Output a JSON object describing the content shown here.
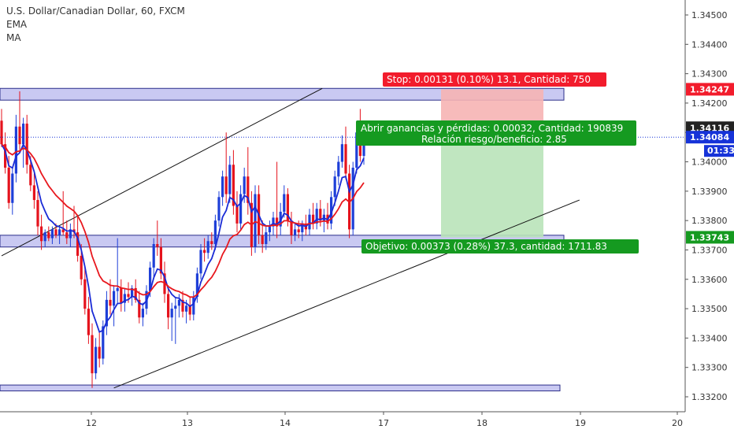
{
  "header": {
    "symbol": "U.S. Dollar/Canadian Dollar, 60, FXCM",
    "indicator_ema": "EMA",
    "indicator_ma": "MA"
  },
  "colors": {
    "up": "#1e3fd8",
    "down": "#e5131d",
    "ema": "#1a2bd6",
    "ma": "#e8171d",
    "zone_fill": "#c9c9f2",
    "zone_stroke": "#2c2f8a",
    "stop_fill": "#f6b4b4",
    "target_fill": "#b9e3b9",
    "red_tag": "#f21c2c",
    "green_tag": "#159a20",
    "blue_tag": "#1633d8",
    "dark_tag": "#222222"
  },
  "chart_data": {
    "type": "candlestick",
    "instrument": "U.S. Dollar/Canadian Dollar",
    "timeframe": "60",
    "source": "FXCM",
    "ylim": [
      1.3318,
      1.3458
    ],
    "y_ticks": [
      1.332,
      1.333,
      1.334,
      1.335,
      1.336,
      1.337,
      1.338,
      1.339,
      1.34,
      1.341,
      1.342,
      1.343,
      1.344,
      1.345
    ],
    "y_tick_labels": [
      "1.33200",
      "1.33300",
      "1.33400",
      "1.33500",
      "1.33600",
      "1.33700",
      "1.33800",
      "1.33900",
      "1.34000",
      "1.34100",
      "1.34200",
      "1.34300",
      "1.34400",
      "1.34500"
    ],
    "x_ticks": [
      "12",
      "13",
      "14",
      "17",
      "18",
      "19",
      "20"
    ],
    "horizontal_zones": [
      {
        "from": 1.3421,
        "to": 1.3425
      },
      {
        "from": 1.3371,
        "to": 1.3375
      },
      {
        "from": 1.3322,
        "to": 1.3324
      }
    ],
    "trend_lines": [
      {
        "from": [
          0,
          1.3368
        ],
        "to": [
          82,
          1.3425
        ]
      },
      {
        "from": [
          31,
          1.3323
        ],
        "to": [
          153,
          1.3387
        ]
      }
    ],
    "candles": [
      {
        "o": 1.3414,
        "h": 1.3418,
        "l": 1.3405,
        "c": 1.3406
      },
      {
        "o": 1.3406,
        "h": 1.341,
        "l": 1.3396,
        "c": 1.3398
      },
      {
        "o": 1.3398,
        "h": 1.3402,
        "l": 1.3384,
        "c": 1.3386
      },
      {
        "o": 1.3386,
        "h": 1.3398,
        "l": 1.3382,
        "c": 1.3396
      },
      {
        "o": 1.3396,
        "h": 1.3416,
        "l": 1.3393,
        "c": 1.3412
      },
      {
        "o": 1.3412,
        "h": 1.3424,
        "l": 1.3404,
        "c": 1.3406
      },
      {
        "o": 1.3406,
        "h": 1.3415,
        "l": 1.3398,
        "c": 1.3413
      },
      {
        "o": 1.3413,
        "h": 1.3416,
        "l": 1.3396,
        "c": 1.3399
      },
      {
        "o": 1.3399,
        "h": 1.3402,
        "l": 1.339,
        "c": 1.3392
      },
      {
        "o": 1.3392,
        "h": 1.3396,
        "l": 1.3384,
        "c": 1.3387
      },
      {
        "o": 1.3387,
        "h": 1.339,
        "l": 1.3375,
        "c": 1.3378
      },
      {
        "o": 1.3378,
        "h": 1.3382,
        "l": 1.337,
        "c": 1.3373
      },
      {
        "o": 1.3373,
        "h": 1.3377,
        "l": 1.3371,
        "c": 1.3376
      },
      {
        "o": 1.3376,
        "h": 1.3378,
        "l": 1.3373,
        "c": 1.3374
      },
      {
        "o": 1.3374,
        "h": 1.3378,
        "l": 1.3372,
        "c": 1.3377
      },
      {
        "o": 1.3377,
        "h": 1.3379,
        "l": 1.3374,
        "c": 1.3375
      },
      {
        "o": 1.3375,
        "h": 1.3378,
        "l": 1.3372,
        "c": 1.3377
      },
      {
        "o": 1.3377,
        "h": 1.339,
        "l": 1.3375,
        "c": 1.3376
      },
      {
        "o": 1.3376,
        "h": 1.338,
        "l": 1.3372,
        "c": 1.3374
      },
      {
        "o": 1.3374,
        "h": 1.3379,
        "l": 1.3371,
        "c": 1.3377
      },
      {
        "o": 1.3377,
        "h": 1.3385,
        "l": 1.3374,
        "c": 1.3376
      },
      {
        "o": 1.3376,
        "h": 1.3382,
        "l": 1.3366,
        "c": 1.3368
      },
      {
        "o": 1.3368,
        "h": 1.3372,
        "l": 1.3358,
        "c": 1.336
      },
      {
        "o": 1.336,
        "h": 1.3364,
        "l": 1.3348,
        "c": 1.335
      },
      {
        "o": 1.335,
        "h": 1.3354,
        "l": 1.3338,
        "c": 1.3341
      },
      {
        "o": 1.3341,
        "h": 1.3345,
        "l": 1.3323,
        "c": 1.3328
      },
      {
        "o": 1.3328,
        "h": 1.334,
        "l": 1.3326,
        "c": 1.3337
      },
      {
        "o": 1.3337,
        "h": 1.3342,
        "l": 1.333,
        "c": 1.3333
      },
      {
        "o": 1.3333,
        "h": 1.3346,
        "l": 1.3331,
        "c": 1.3344
      },
      {
        "o": 1.3344,
        "h": 1.3356,
        "l": 1.3341,
        "c": 1.3353
      },
      {
        "o": 1.3353,
        "h": 1.336,
        "l": 1.3348,
        "c": 1.3351
      },
      {
        "o": 1.3351,
        "h": 1.3358,
        "l": 1.3344,
        "c": 1.3356
      },
      {
        "o": 1.3356,
        "h": 1.3374,
        "l": 1.3352,
        "c": 1.3357
      },
      {
        "o": 1.3357,
        "h": 1.336,
        "l": 1.3349,
        "c": 1.3352
      },
      {
        "o": 1.3352,
        "h": 1.3357,
        "l": 1.3349,
        "c": 1.3355
      },
      {
        "o": 1.3355,
        "h": 1.3359,
        "l": 1.3352,
        "c": 1.3354
      },
      {
        "o": 1.3354,
        "h": 1.3358,
        "l": 1.3351,
        "c": 1.3357
      },
      {
        "o": 1.3357,
        "h": 1.336,
        "l": 1.3352,
        "c": 1.3353
      },
      {
        "o": 1.3353,
        "h": 1.3356,
        "l": 1.3345,
        "c": 1.3347
      },
      {
        "o": 1.3347,
        "h": 1.3352,
        "l": 1.3344,
        "c": 1.335
      },
      {
        "o": 1.335,
        "h": 1.3358,
        "l": 1.3348,
        "c": 1.3356
      },
      {
        "o": 1.3356,
        "h": 1.3366,
        "l": 1.3354,
        "c": 1.3364
      },
      {
        "o": 1.3364,
        "h": 1.3374,
        "l": 1.336,
        "c": 1.3372
      },
      {
        "o": 1.3372,
        "h": 1.338,
        "l": 1.3368,
        "c": 1.3371
      },
      {
        "o": 1.3371,
        "h": 1.3374,
        "l": 1.336,
        "c": 1.3362
      },
      {
        "o": 1.3362,
        "h": 1.3366,
        "l": 1.3352,
        "c": 1.3355
      },
      {
        "o": 1.3355,
        "h": 1.3358,
        "l": 1.3343,
        "c": 1.3347
      },
      {
        "o": 1.3347,
        "h": 1.3352,
        "l": 1.3339,
        "c": 1.335
      },
      {
        "o": 1.335,
        "h": 1.3354,
        "l": 1.3338,
        "c": 1.3351
      },
      {
        "o": 1.3351,
        "h": 1.3355,
        "l": 1.3347,
        "c": 1.3353
      },
      {
        "o": 1.3353,
        "h": 1.3356,
        "l": 1.3347,
        "c": 1.3349
      },
      {
        "o": 1.3349,
        "h": 1.3353,
        "l": 1.3345,
        "c": 1.3351
      },
      {
        "o": 1.3351,
        "h": 1.3354,
        "l": 1.3346,
        "c": 1.3348
      },
      {
        "o": 1.3348,
        "h": 1.3356,
        "l": 1.3346,
        "c": 1.3354
      },
      {
        "o": 1.3354,
        "h": 1.3364,
        "l": 1.3352,
        "c": 1.3362
      },
      {
        "o": 1.3362,
        "h": 1.3372,
        "l": 1.336,
        "c": 1.337
      },
      {
        "o": 1.337,
        "h": 1.3374,
        "l": 1.3366,
        "c": 1.3369
      },
      {
        "o": 1.3369,
        "h": 1.3375,
        "l": 1.3367,
        "c": 1.3373
      },
      {
        "o": 1.3373,
        "h": 1.3376,
        "l": 1.337,
        "c": 1.3372
      },
      {
        "o": 1.3372,
        "h": 1.3382,
        "l": 1.337,
        "c": 1.338
      },
      {
        "o": 1.338,
        "h": 1.339,
        "l": 1.3378,
        "c": 1.3388
      },
      {
        "o": 1.3388,
        "h": 1.3397,
        "l": 1.3385,
        "c": 1.3395
      },
      {
        "o": 1.3395,
        "h": 1.341,
        "l": 1.3386,
        "c": 1.3389
      },
      {
        "o": 1.3389,
        "h": 1.3402,
        "l": 1.3386,
        "c": 1.3399
      },
      {
        "o": 1.3399,
        "h": 1.3404,
        "l": 1.3382,
        "c": 1.3385
      },
      {
        "o": 1.3385,
        "h": 1.339,
        "l": 1.3376,
        "c": 1.3379
      },
      {
        "o": 1.3379,
        "h": 1.3392,
        "l": 1.3377,
        "c": 1.3389
      },
      {
        "o": 1.3389,
        "h": 1.3398,
        "l": 1.3386,
        "c": 1.3395
      },
      {
        "o": 1.3395,
        "h": 1.3405,
        "l": 1.3382,
        "c": 1.3386
      },
      {
        "o": 1.3386,
        "h": 1.339,
        "l": 1.3368,
        "c": 1.3371
      },
      {
        "o": 1.3371,
        "h": 1.3392,
        "l": 1.3369,
        "c": 1.3389
      },
      {
        "o": 1.3389,
        "h": 1.3392,
        "l": 1.3372,
        "c": 1.3375
      },
      {
        "o": 1.3375,
        "h": 1.338,
        "l": 1.3369,
        "c": 1.3372
      },
      {
        "o": 1.3372,
        "h": 1.3378,
        "l": 1.337,
        "c": 1.3376
      },
      {
        "o": 1.3376,
        "h": 1.338,
        "l": 1.3373,
        "c": 1.3378
      },
      {
        "o": 1.3378,
        "h": 1.3383,
        "l": 1.3375,
        "c": 1.3381
      },
      {
        "o": 1.3381,
        "h": 1.34,
        "l": 1.3374,
        "c": 1.3378
      },
      {
        "o": 1.3378,
        "h": 1.3386,
        "l": 1.3375,
        "c": 1.3383
      },
      {
        "o": 1.3383,
        "h": 1.3392,
        "l": 1.3381,
        "c": 1.3389
      },
      {
        "o": 1.3389,
        "h": 1.3391,
        "l": 1.3378,
        "c": 1.338
      },
      {
        "o": 1.338,
        "h": 1.3383,
        "l": 1.3372,
        "c": 1.3375
      },
      {
        "o": 1.3375,
        "h": 1.3379,
        "l": 1.3373,
        "c": 1.3377
      },
      {
        "o": 1.3377,
        "h": 1.338,
        "l": 1.3374,
        "c": 1.3376
      },
      {
        "o": 1.3376,
        "h": 1.338,
        "l": 1.3373,
        "c": 1.3379
      },
      {
        "o": 1.3379,
        "h": 1.3382,
        "l": 1.3375,
        "c": 1.3377
      },
      {
        "o": 1.3377,
        "h": 1.3384,
        "l": 1.3375,
        "c": 1.3382
      },
      {
        "o": 1.3382,
        "h": 1.3386,
        "l": 1.3377,
        "c": 1.3379
      },
      {
        "o": 1.3379,
        "h": 1.3386,
        "l": 1.3377,
        "c": 1.3384
      },
      {
        "o": 1.3384,
        "h": 1.3387,
        "l": 1.3378,
        "c": 1.338
      },
      {
        "o": 1.338,
        "h": 1.3384,
        "l": 1.3376,
        "c": 1.3382
      },
      {
        "o": 1.3382,
        "h": 1.3386,
        "l": 1.3377,
        "c": 1.3379
      },
      {
        "o": 1.3379,
        "h": 1.339,
        "l": 1.3377,
        "c": 1.3388
      },
      {
        "o": 1.3388,
        "h": 1.3397,
        "l": 1.3385,
        "c": 1.3395
      },
      {
        "o": 1.3395,
        "h": 1.3402,
        "l": 1.3392,
        "c": 1.34
      },
      {
        "o": 1.34,
        "h": 1.3409,
        "l": 1.3398,
        "c": 1.3406
      },
      {
        "o": 1.3406,
        "h": 1.3412,
        "l": 1.3394,
        "c": 1.3396
      },
      {
        "o": 1.3396,
        "h": 1.3399,
        "l": 1.3374,
        "c": 1.3377
      },
      {
        "o": 1.3377,
        "h": 1.34,
        "l": 1.3375,
        "c": 1.3398
      },
      {
        "o": 1.3398,
        "h": 1.3412,
        "l": 1.3396,
        "c": 1.341
      },
      {
        "o": 1.341,
        "h": 1.3418,
        "l": 1.34,
        "c": 1.3402
      },
      {
        "o": 1.3402,
        "h": 1.3412,
        "l": 1.3399,
        "c": 1.3408
      }
    ],
    "position": {
      "stop_price": 1.34247,
      "target_price": 1.33743,
      "entry_price": 1.34116,
      "stop_label": "Stop: 0.00131 (0.10%) 13.1, Cantidad: 750",
      "pnl_label": "Abrir ganancias y pérdidas: 0.00032, Cantidad: 190839",
      "rr_label": "Relación riesgo/beneficio: 2.85",
      "target_label": "Objetivo: 0.00373 (0.28%) 37.3, cantidad: 1711.83"
    },
    "price_tags": [
      {
        "value": 1.34247,
        "label": "1.34247",
        "color": "red"
      },
      {
        "value": 1.34116,
        "label": "1.34116",
        "color": "dark"
      },
      {
        "value": 1.34084,
        "label": "1.34084",
        "color": "blue"
      },
      {
        "value": 1.33743,
        "label": "1.33743",
        "color": "green"
      }
    ],
    "countdown": "01:33"
  }
}
